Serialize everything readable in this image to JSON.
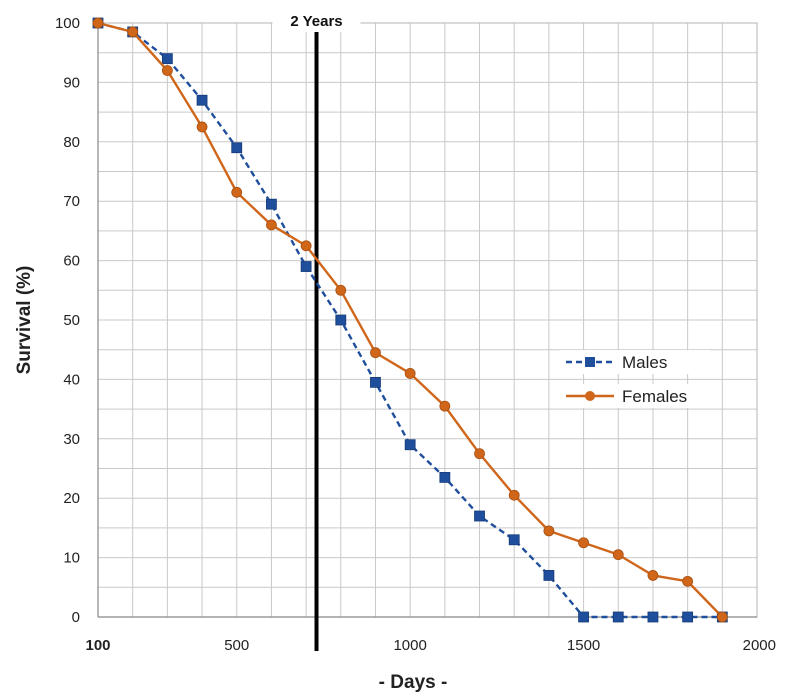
{
  "chart_data": {
    "type": "line",
    "xlabel": "- Days -",
    "ylabel": "Survival (%)",
    "xlim": [
      100,
      2000
    ],
    "ylim": [
      0,
      100
    ],
    "x_ticks": [
      100,
      500,
      1000,
      1500,
      2000
    ],
    "y_ticks": [
      0,
      10,
      20,
      30,
      40,
      50,
      60,
      70,
      80,
      90,
      100
    ],
    "grid": true,
    "legend_position": "center-right",
    "series": [
      {
        "name": "Males",
        "color": "#1f4e9c",
        "line_style": "dashed",
        "marker": "square",
        "x": [
          100,
          200,
          300,
          400,
          500,
          600,
          700,
          800,
          900,
          1000,
          1100,
          1200,
          1300,
          1400,
          1500,
          1600,
          1700,
          1800,
          1900
        ],
        "y": [
          100,
          98.5,
          94,
          87,
          79,
          69.5,
          59,
          50,
          39.5,
          29,
          23.5,
          17,
          13,
          7,
          0,
          0,
          0,
          0,
          0
        ]
      },
      {
        "name": "Females",
        "color": "#d0661a",
        "line_style": "solid",
        "marker": "circle",
        "x": [
          100,
          200,
          300,
          400,
          500,
          600,
          700,
          800,
          900,
          1000,
          1100,
          1200,
          1300,
          1400,
          1500,
          1600,
          1700,
          1800,
          1900
        ],
        "y": [
          100,
          98.5,
          92,
          82.5,
          71.5,
          66,
          62.5,
          55,
          44.5,
          41,
          35.5,
          27.5,
          20.5,
          14.5,
          12.5,
          10.5,
          7,
          6,
          0
        ]
      }
    ],
    "annotations": [
      {
        "label": "2 Years",
        "x": 730,
        "type": "vertical-line",
        "color": "#000000"
      }
    ]
  }
}
